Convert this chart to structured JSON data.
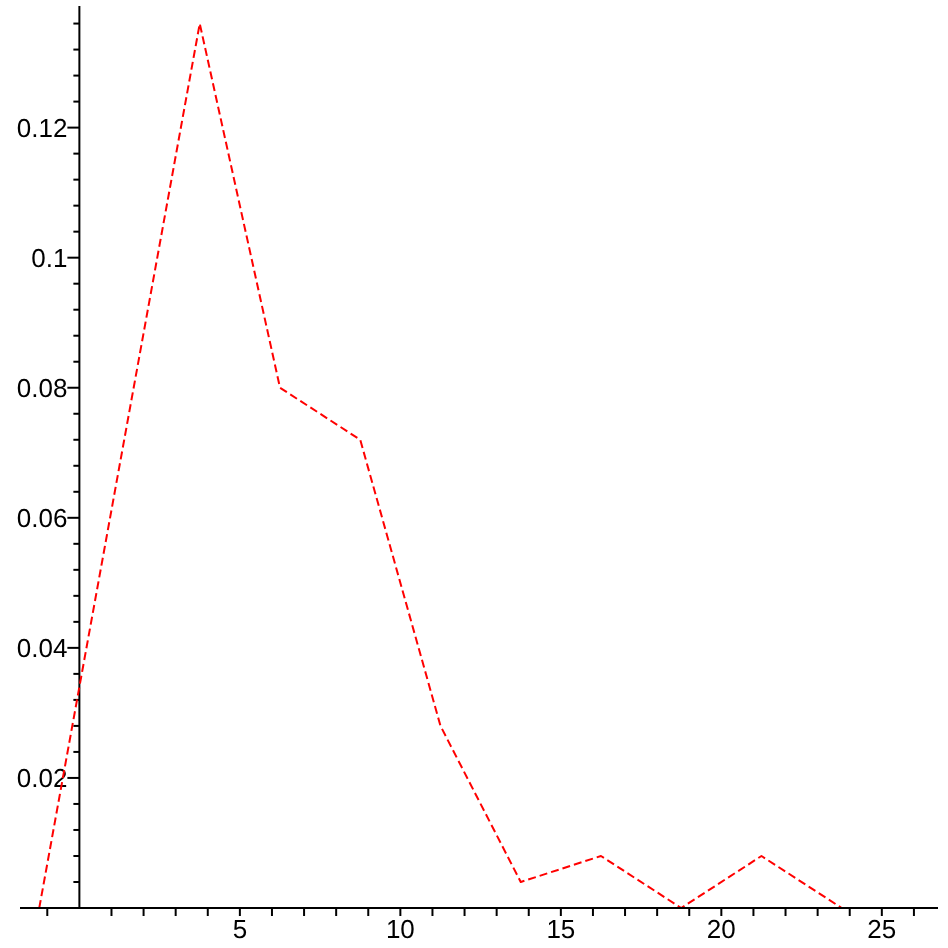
{
  "chart_data": {
    "type": "line",
    "x": [
      -1.25,
      3.75,
      6.25,
      8.75,
      11.25,
      13.75,
      16.25,
      18.75,
      21.25,
      23.75
    ],
    "values": [
      0,
      0.136,
      0.08,
      0.072,
      0.028,
      0.004,
      0.008,
      0,
      0.008,
      0
    ],
    "color": "#ff0000",
    "line_style": "dashed",
    "marker": "none",
    "xlim": [
      -1.85,
      26.75
    ],
    "ylim": [
      0,
      0.1387
    ],
    "xticks": [
      {
        "value": -1,
        "label": null
      },
      {
        "value": 1,
        "label": null
      },
      {
        "value": 2,
        "label": null
      },
      {
        "value": 3,
        "label": null
      },
      {
        "value": 4,
        "label": null
      },
      5,
      {
        "value": 6,
        "label": null
      },
      {
        "value": 7,
        "label": null
      },
      {
        "value": 8,
        "label": null
      },
      {
        "value": 9,
        "label": null
      },
      10,
      {
        "value": 11,
        "label": null
      },
      {
        "value": 12,
        "label": null
      },
      {
        "value": 13,
        "label": null
      },
      {
        "value": 14,
        "label": null
      },
      15,
      {
        "value": 16,
        "label": null
      },
      {
        "value": 17,
        "label": null
      },
      {
        "value": 18,
        "label": null
      },
      {
        "value": 19,
        "label": null
      },
      20,
      {
        "value": 21,
        "label": null
      },
      {
        "value": 22,
        "label": null
      },
      {
        "value": 23,
        "label": null
      },
      {
        "value": 24,
        "label": null
      },
      25,
      {
        "value": 26,
        "label": null
      }
    ],
    "yticks": [
      {
        "value": 0.004,
        "label": null
      },
      {
        "value": 0.008,
        "label": null
      },
      {
        "value": 0.012,
        "label": null
      },
      {
        "value": 0.016,
        "label": null
      },
      0.02,
      {
        "value": 0.024,
        "label": null
      },
      {
        "value": 0.028,
        "label": null
      },
      {
        "value": 0.032,
        "label": null
      },
      {
        "value": 0.036,
        "label": null
      },
      0.04,
      {
        "value": 0.044,
        "label": null
      },
      {
        "value": 0.048,
        "label": null
      },
      {
        "value": 0.052,
        "label": null
      },
      {
        "value": 0.056,
        "label": null
      },
      0.06,
      {
        "value": 0.064,
        "label": null
      },
      {
        "value": 0.068,
        "label": null
      },
      {
        "value": 0.072,
        "label": null
      },
      {
        "value": 0.076,
        "label": null
      },
      0.08,
      {
        "value": 0.084,
        "label": null
      },
      {
        "value": 0.088,
        "label": null
      },
      {
        "value": 0.092,
        "label": null
      },
      {
        "value": 0.096,
        "label": null
      },
      0.1,
      {
        "value": 0.104,
        "label": null
      },
      {
        "value": 0.108,
        "label": null
      },
      {
        "value": 0.112,
        "label": null
      },
      {
        "value": 0.116,
        "label": null
      },
      0.12,
      {
        "value": 0.124,
        "label": null
      },
      {
        "value": 0.128,
        "label": null
      },
      {
        "value": 0.132,
        "label": null
      },
      {
        "value": 0.136,
        "label": null
      }
    ]
  }
}
